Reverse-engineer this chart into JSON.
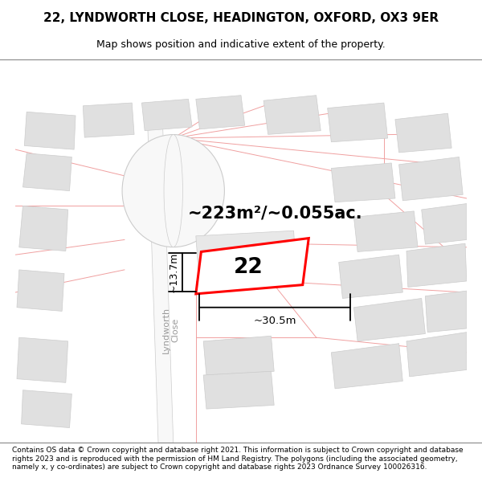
{
  "title_line1": "22, LYNDWORTH CLOSE, HEADINGTON, OXFORD, OX3 9ER",
  "title_line2": "Map shows position and indicative extent of the property.",
  "footer_text": "Contains OS data © Crown copyright and database right 2021. This information is subject to Crown copyright and database rights 2023 and is reproduced with the permission of HM Land Registry. The polygons (including the associated geometry, namely x, y co-ordinates) are subject to Crown copyright and database rights 2023 Ordnance Survey 100026316.",
  "area_label": "~223m²/~0.055ac.",
  "number_label": "22",
  "dim_width": "~30.5m",
  "dim_height": "~13.7m",
  "street_label": "Lyndworth\nClose",
  "map_bg": "#ffffff",
  "plot_color": "#ff0000",
  "plot_fill": "#ffffff",
  "building_fill": "#e0e0e0",
  "building_edge": "#cccccc",
  "road_fill": "#ffffff",
  "road_edge": "#cccccc",
  "pink": "#f0a0a0",
  "title_fs": 11,
  "subtitle_fs": 9,
  "footer_fs": 6.5
}
